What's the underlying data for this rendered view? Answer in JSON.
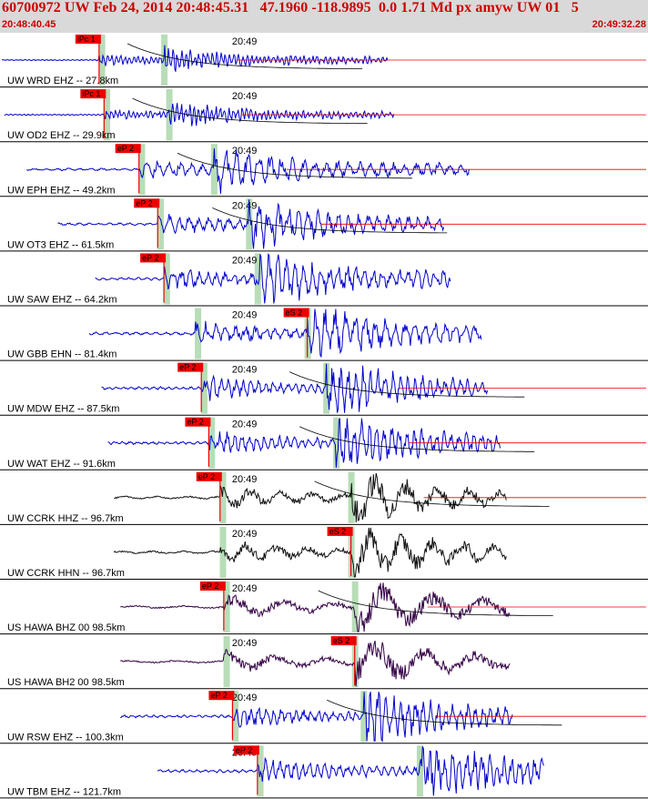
{
  "header": {
    "title": "60700972 UW Feb 24, 2014 20:48:45.31   47.1960 -118.9895  0.0 1.71 Md px amyw UW 01   5",
    "start_time": "20:48:40.45",
    "end_time": "20:49:32.28"
  },
  "colors": {
    "background": "#ffffff",
    "header_bg": "#d9d9d9",
    "title_text": "#cc0000",
    "trace_blue": "#0000cc",
    "trace_black": "#111111",
    "trace_purple": "#330044",
    "pick_red": "#ee0000",
    "window_green": "#b8ddb8",
    "coda_curve": "#000000"
  },
  "chart_data": {
    "type": "seismogram",
    "time_range": [
      "20:48:40.45",
      "20:49:32.28"
    ],
    "minute_mark_label": "20:49",
    "panels": [
      {
        "label": "UW WRD EHZ -- 27.8km",
        "color": "#0000cc",
        "pick": "iPc 1",
        "coda": true,
        "trace_start_s": 0.0,
        "trace_end_s": 31.0,
        "p_s": 7.8,
        "s_s": 13.0,
        "amp_scale": 0.25,
        "period_s": 0.35
      },
      {
        "label": "UW OD2 EHZ -- 29.9km",
        "color": "#0000cc",
        "pick": "iPc 1",
        "coda": true,
        "trace_start_s": 0.2,
        "trace_end_s": 31.5,
        "p_s": 8.2,
        "s_s": 13.4,
        "amp_scale": 0.25,
        "period_s": 0.35
      },
      {
        "label": "UW EPH EHZ -- 49.2km",
        "color": "#0000cc",
        "pick": "eP 2",
        "coda": true,
        "trace_start_s": 2.0,
        "trace_end_s": 37.5,
        "p_s": 11.0,
        "s_s": 17.0,
        "amp_scale": 0.45,
        "period_s": 0.9
      },
      {
        "label": "UW OT3 EHZ -- 61.5km",
        "color": "#0000cc",
        "pick": "eP 2",
        "coda": true,
        "trace_start_s": 4.5,
        "trace_end_s": 35.5,
        "p_s": 12.5,
        "s_s": 19.8,
        "amp_scale": 0.5,
        "period_s": 0.8
      },
      {
        "label": "UW SAW EHZ -- 64.2km",
        "color": "#0000cc",
        "pick": "eP 2",
        "coda": false,
        "trace_start_s": 7.5,
        "trace_end_s": 36.0,
        "p_s": 13.0,
        "s_s": 20.5,
        "amp_scale": 0.55,
        "period_s": 0.7
      },
      {
        "label": "UW GBB EHN -- 81.4km",
        "color": "#0000cc",
        "pick": "eS 2",
        "coda": false,
        "trace_start_s": 7.0,
        "trace_end_s": 38.5,
        "p_s": 15.5,
        "s_s": 24.5,
        "amp_scale": 0.55,
        "period_s": 0.8
      },
      {
        "label": "UW MDW EHZ -- 87.5km",
        "color": "#0000cc",
        "pick": "eP 2",
        "coda": true,
        "trace_start_s": 8.0,
        "trace_end_s": 39.0,
        "p_s": 16.0,
        "s_s": 26.0,
        "amp_scale": 0.55,
        "period_s": 0.6
      },
      {
        "label": "UW WAT EHZ -- 91.6km",
        "color": "#0000cc",
        "pick": "eP 2",
        "coda": true,
        "trace_start_s": 8.5,
        "trace_end_s": 40.0,
        "p_s": 16.6,
        "s_s": 26.8,
        "amp_scale": 0.55,
        "period_s": 0.6
      },
      {
        "label": "UW CCRK HHZ -- 96.7km",
        "color": "#111111",
        "pick": "eP 2",
        "coda": true,
        "trace_start_s": 9.0,
        "trace_end_s": 40.5,
        "p_s": 17.5,
        "s_s": 28.0,
        "amp_scale": 0.55,
        "period_s": 2.5
      },
      {
        "label": "UW CCRK HHN -- 96.7km",
        "color": "#111111",
        "pick": "eS 2",
        "coda": false,
        "trace_start_s": 9.0,
        "trace_end_s": 40.5,
        "p_s": 17.5,
        "s_s": 28.0,
        "amp_scale": 0.55,
        "period_s": 2.5
      },
      {
        "label": "US HAWA BHZ 00 98.5km",
        "color": "#330044",
        "pick": "eP 2",
        "coda": true,
        "trace_start_s": 9.5,
        "trace_end_s": 40.8,
        "p_s": 17.8,
        "s_s": 28.3,
        "amp_scale": 0.55,
        "period_s": 4.0
      },
      {
        "label": "US HAWA BH2 00 98.5km",
        "color": "#330044",
        "pick": "eS 2",
        "coda": false,
        "trace_start_s": 9.5,
        "trace_end_s": 40.8,
        "p_s": 17.8,
        "s_s": 28.3,
        "amp_scale": 0.5,
        "period_s": 4.0
      },
      {
        "label": "UW RSW EHZ -- 100.3km",
        "color": "#0000cc",
        "pick": "eP 2",
        "coda": true,
        "trace_start_s": 9.5,
        "trace_end_s": 41.0,
        "p_s": 18.5,
        "s_s": 29.0,
        "amp_scale": 0.55,
        "period_s": 0.6
      },
      {
        "label": "UW TBM EHZ -- 121.7km",
        "color": "#0000cc",
        "pick": "eP 2",
        "coda": false,
        "trace_start_s": 12.5,
        "trace_end_s": 43.5,
        "p_s": 20.5,
        "s_s": 33.5,
        "amp_scale": 0.6,
        "period_s": 0.6
      }
    ]
  }
}
